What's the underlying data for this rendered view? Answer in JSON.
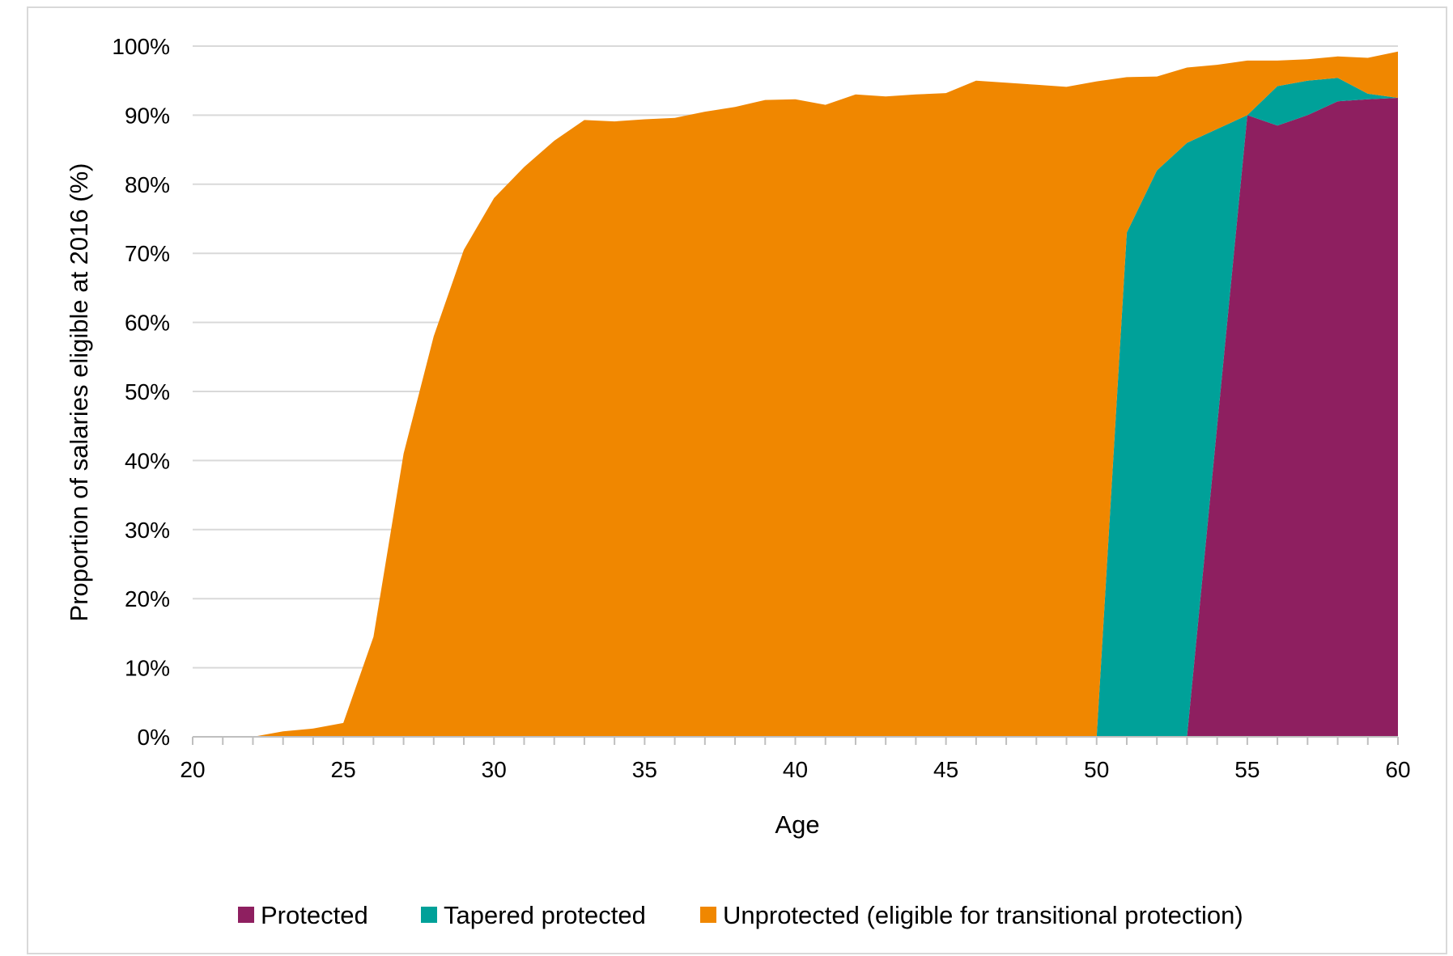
{
  "chart_data": {
    "type": "area",
    "stacked": true,
    "xlabel": "Age",
    "ylabel": "Proportion of salaries eligible at 2016 (%)",
    "xlim": [
      20,
      60
    ],
    "ylim": [
      0,
      100
    ],
    "x_ticks": [
      20,
      25,
      30,
      35,
      40,
      45,
      50,
      55,
      60
    ],
    "x_tick_labels": [
      "20",
      "25",
      "30",
      "35",
      "40",
      "45",
      "50",
      "55",
      "60"
    ],
    "y_ticks": [
      0,
      10,
      20,
      30,
      40,
      50,
      60,
      70,
      80,
      90,
      100
    ],
    "y_tick_labels": [
      "0%",
      "10%",
      "20%",
      "30%",
      "40%",
      "50%",
      "60%",
      "70%",
      "80%",
      "90%",
      "100%"
    ],
    "grid": "horizontal",
    "legend_position": "bottom",
    "x": [
      20,
      21,
      22,
      23,
      24,
      25,
      26,
      27,
      28,
      29,
      30,
      31,
      32,
      33,
      34,
      35,
      36,
      37,
      38,
      39,
      40,
      41,
      42,
      43,
      44,
      45,
      46,
      47,
      48,
      49,
      50,
      51,
      52,
      53,
      54,
      55,
      56,
      57,
      58,
      59,
      60
    ],
    "series": [
      {
        "name": "Protected",
        "color": "#8E1F60",
        "values": [
          0,
          0,
          0,
          0,
          0,
          0,
          0,
          0,
          0,
          0,
          0,
          0,
          0,
          0,
          0,
          0,
          0,
          0,
          0,
          0,
          0,
          0,
          0,
          0,
          0,
          0,
          0,
          0,
          0,
          0,
          0,
          0,
          0,
          0,
          45,
          90,
          88.5,
          90,
          92,
          92.3,
          92.5
        ]
      },
      {
        "name": "Tapered protected",
        "color": "#00A199",
        "values": [
          0,
          0,
          0,
          0,
          0,
          0,
          0,
          0,
          0,
          0,
          0,
          0,
          0,
          0,
          0,
          0,
          0,
          0,
          0,
          0,
          0,
          0,
          0,
          0,
          0,
          0,
          0,
          0,
          0,
          0,
          0,
          73,
          82,
          86,
          43,
          0,
          5.7,
          5,
          3.4,
          0.8,
          0
        ]
      },
      {
        "name": "Unprotected (eligible for transitional protection)",
        "color": "#F08700",
        "values": [
          0,
          0,
          0,
          0.8,
          1.2,
          2,
          14.5,
          41,
          58,
          70.5,
          78,
          82.5,
          86.3,
          89.3,
          89.1,
          89.4,
          89.6,
          90.5,
          91.2,
          92.2,
          92.3,
          91.5,
          93,
          92.7,
          93,
          93.2,
          95,
          94.7,
          94.4,
          94.1,
          94.9,
          22.5,
          13.6,
          10.9,
          9.3,
          7.9,
          3.7,
          3.1,
          3.1,
          5.2,
          6.7
        ]
      }
    ]
  }
}
